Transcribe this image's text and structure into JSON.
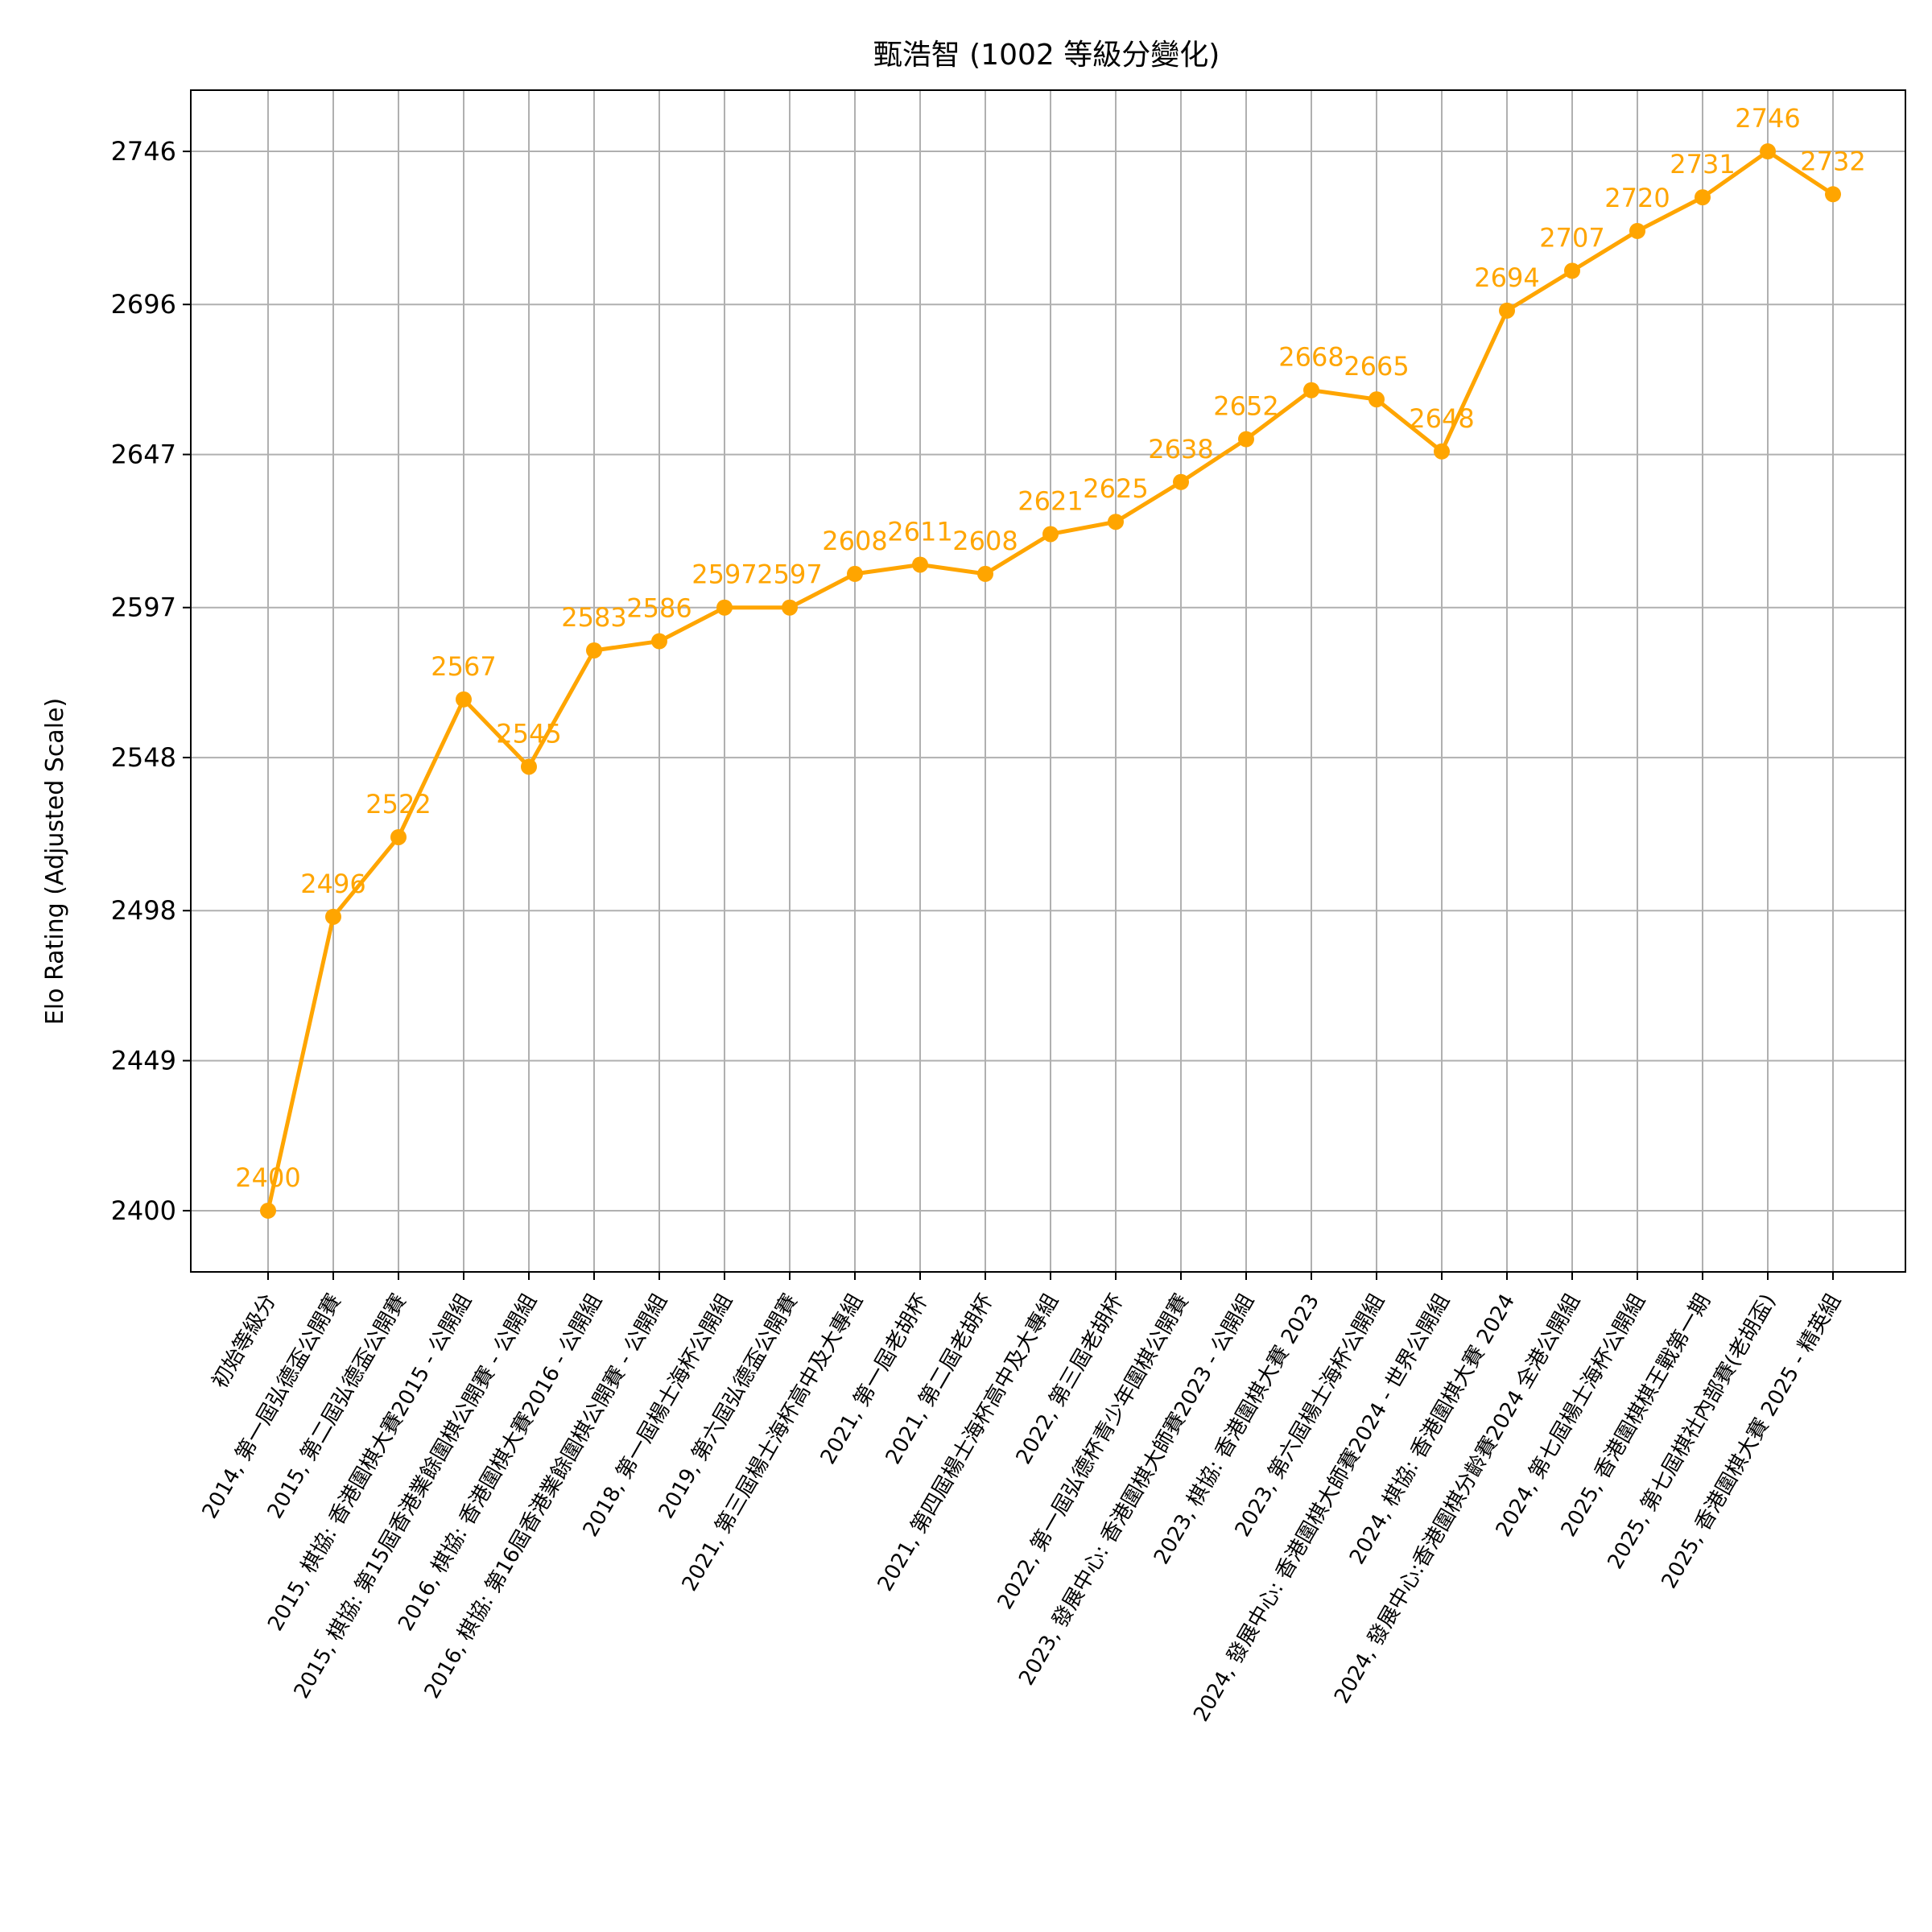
{
  "chart_data": {
    "type": "line",
    "title": "甄浩智 (1002 等級分變化)",
    "xlabel": "",
    "ylabel": "Elo Rating (Adjusted Scale)",
    "grid": true,
    "color": "#FFA500",
    "yticks": [
      2400,
      2449,
      2498,
      2548,
      2597,
      2647,
      2696,
      2746
    ],
    "ylim": [
      2380,
      2766
    ],
    "categories": [
      "初始等級分",
      "2014, 第一屆弘德盃公開賽",
      "2015, 第二屆弘德盃公開賽",
      "2015, 棋協: 香港圍棋大賽2015 - 公開組",
      "2015, 棋協: 第15屆香港業餘圍棋公開賽 - 公開組",
      "2016, 棋協: 香港圍棋大賽2016 - 公開組",
      "2016, 棋協: 第16屆香港業餘圍棋公開賽 - 公開組",
      "2018, 第一屆楊士海杯公開組",
      "2019, 第六屆弘德盃公開賽",
      "2021, 第三屆楊士海杯高中及大專組",
      "2021, 第一屆老胡杯",
      "2021, 第二屆老胡杯",
      "2021, 第四屆楊士海杯高中及大專組",
      "2022, 第三屆老胡杯",
      "2022, 第一屆弘德杯青少年圍棋公開賽",
      "2023, 發展中心: 香港圍棋大師賽2023 - 公開組",
      "2023, 棋協: 香港圍棋大賽 2023",
      "2023, 第六屆楊士海杯公開組",
      "2024, 發展中心: 香港圍棋大師賽2024 - 世界公開組",
      "2024, 棋協: 香港圍棋大賽 2024",
      "2024, 發展中心:香港圍棋分齡賽2024 全港公開組",
      "2024, 第七屆楊士海杯公開組",
      "2025, 香港圍棋棋王戰第一期",
      "2025, 第七屆棋社內部賽(老胡盃)",
      "2025, 香港圍棋大賽 2025 - 精英組"
    ],
    "values": [
      2400,
      2496,
      2522,
      2567,
      2545,
      2583,
      2586,
      2597,
      2597,
      2608,
      2611,
      2608,
      2621,
      2625,
      2638,
      2652,
      2668,
      2665,
      2648,
      2694,
      2707,
      2720,
      2731,
      2746,
      2732
    ],
    "data_labels": [
      "2400",
      "2496",
      "2522",
      "2567",
      "2545",
      "2583",
      "2586",
      "2597",
      "2597",
      "2608",
      "2611",
      "2608",
      "2621",
      "2625",
      "2638",
      "2652",
      "2668",
      "2665",
      "2648",
      "2694",
      "2707",
      "2720",
      "2731",
      "2746",
      "2732"
    ]
  }
}
